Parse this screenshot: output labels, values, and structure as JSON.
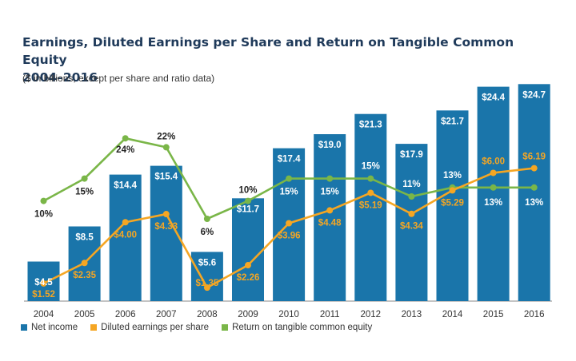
{
  "chart_data": {
    "type": "bar",
    "title": "Earnings, Diluted Earnings per Share and Return on Tangible Common Equity",
    "title_line2": "2004–2016",
    "subtitle": "($ in billions, except per share and ratio data)",
    "categories": [
      "2004",
      "2005",
      "2006",
      "2007",
      "2008",
      "2009",
      "2010",
      "2011",
      "2012",
      "2013",
      "2014",
      "2015",
      "2016"
    ],
    "series": [
      {
        "name": "Net income",
        "kind": "bar",
        "color": "#1a75aa",
        "values": [
          4.5,
          8.5,
          14.4,
          15.4,
          5.6,
          11.7,
          17.4,
          19.0,
          21.3,
          17.9,
          21.7,
          24.4,
          24.7
        ],
        "labels": [
          "$4.5",
          "$8.5",
          "$14.4",
          "$15.4",
          "$5.6",
          "$11.7",
          "$17.4",
          "$19.0",
          "$21.3",
          "$17.9",
          "$21.7",
          "$24.4",
          "$24.7"
        ]
      },
      {
        "name": "Diluted earnings per share",
        "kind": "line",
        "color": "#f5a623",
        "values": [
          1.52,
          2.35,
          4.0,
          4.33,
          1.35,
          2.26,
          3.96,
          4.48,
          5.19,
          4.34,
          5.29,
          6.0,
          6.19
        ],
        "labels": [
          "$1.52",
          "$2.35",
          "$4.00",
          "$4.33",
          "$1.35",
          "$2.26",
          "$3.96",
          "$4.48",
          "$5.19",
          "$4.34",
          "$5.29",
          "$6.00",
          "$6.19"
        ]
      },
      {
        "name": "Return on tangible common equity",
        "kind": "line",
        "color": "#7ab648",
        "values": [
          10,
          15,
          24,
          22,
          6,
          10,
          15,
          15,
          15,
          11,
          13,
          13,
          13
        ],
        "labels": [
          "10%",
          "15%",
          "24%",
          "22%",
          "6%",
          "10%",
          "15%",
          "15%",
          "15%",
          "11%",
          "13%",
          "13%",
          "13%"
        ]
      }
    ],
    "legend_placement": "bottom-left",
    "grid": false
  }
}
